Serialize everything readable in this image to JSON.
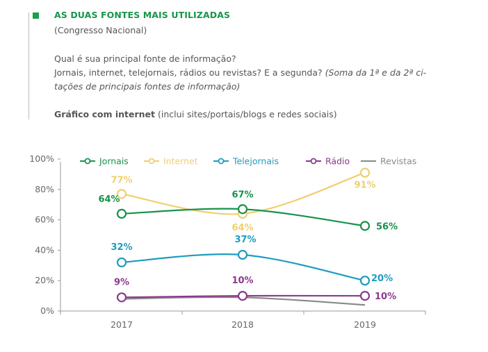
{
  "header": {
    "title": "AS DUAS FONTES MAIS UTILIZADAS",
    "subtitle": "(Congresso Nacional)",
    "question_line1": "Qual é sua principal fonte de informação?",
    "question_line2_plain": "Jornais, internet, telejornais, rádios ou revistas? E a segunda? ",
    "question_line2_italic": "(Soma da 1ª e da 2ª ci-",
    "question_line3_italic": "tações de principais fontes de informação)",
    "note_bold": "Gráfico com internet",
    "note_plain": " (inclui sites/portais/blogs e redes sociais)"
  },
  "chart_data": {
    "type": "line",
    "title": "AS DUAS FONTES MAIS UTILIZADAS",
    "xlabel": "",
    "ylabel": "",
    "x": [
      "2017",
      "2018",
      "2019"
    ],
    "ylim": [
      0,
      100
    ],
    "yticks": [
      "0%",
      "20%",
      "40%",
      "60%",
      "80%",
      "100%"
    ],
    "grid": false,
    "legend_position": "top",
    "series": [
      {
        "name": "Jornais",
        "color": "#17924a",
        "marker": true,
        "values": [
          64,
          67,
          56
        ],
        "labels": [
          "64%",
          "67%",
          "56%"
        ]
      },
      {
        "name": "Internet",
        "color": "#f0cf70",
        "marker": true,
        "values": [
          77,
          64,
          91
        ],
        "labels": [
          "77%",
          "64%",
          "91%"
        ]
      },
      {
        "name": "Telejornais",
        "color": "#1e9bbf",
        "marker": true,
        "values": [
          32,
          37,
          20
        ],
        "labels": [
          "32%",
          "37%",
          "20%"
        ]
      },
      {
        "name": "Rádio",
        "color": "#8a3a8c",
        "marker": true,
        "values": [
          9,
          10,
          10
        ],
        "labels": [
          "9%",
          "10%",
          "10%"
        ]
      },
      {
        "name": "Revistas",
        "color": "#888888",
        "marker": false,
        "values": [
          8,
          9,
          4
        ],
        "labels": []
      }
    ]
  }
}
